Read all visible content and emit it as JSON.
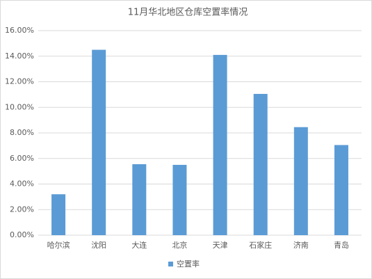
{
  "chart_data": {
    "type": "bar",
    "title": "11月华北地区仓库空置率情况",
    "categories": [
      "哈尔滨",
      "沈阳",
      "大连",
      "北京",
      "天津",
      "石家庄",
      "济南",
      "青岛"
    ],
    "series": [
      {
        "name": "空置率",
        "color": "#5b9bd5",
        "values": [
          3.2,
          14.5,
          5.55,
          5.5,
          14.1,
          11.05,
          8.45,
          7.05
        ]
      }
    ],
    "ylim": [
      0,
      16
    ],
    "yticks": [
      {
        "value": 0,
        "label": "0.00%"
      },
      {
        "value": 2,
        "label": "2.00%"
      },
      {
        "value": 4,
        "label": "4.00%"
      },
      {
        "value": 6,
        "label": "6.00%"
      },
      {
        "value": 8,
        "label": "8.00%"
      },
      {
        "value": 10,
        "label": "10.00%"
      },
      {
        "value": 12,
        "label": "12.00%"
      },
      {
        "value": 14,
        "label": "14.00%"
      },
      {
        "value": 16,
        "label": "16.00%"
      }
    ],
    "grid": true,
    "legend": "bottom"
  }
}
